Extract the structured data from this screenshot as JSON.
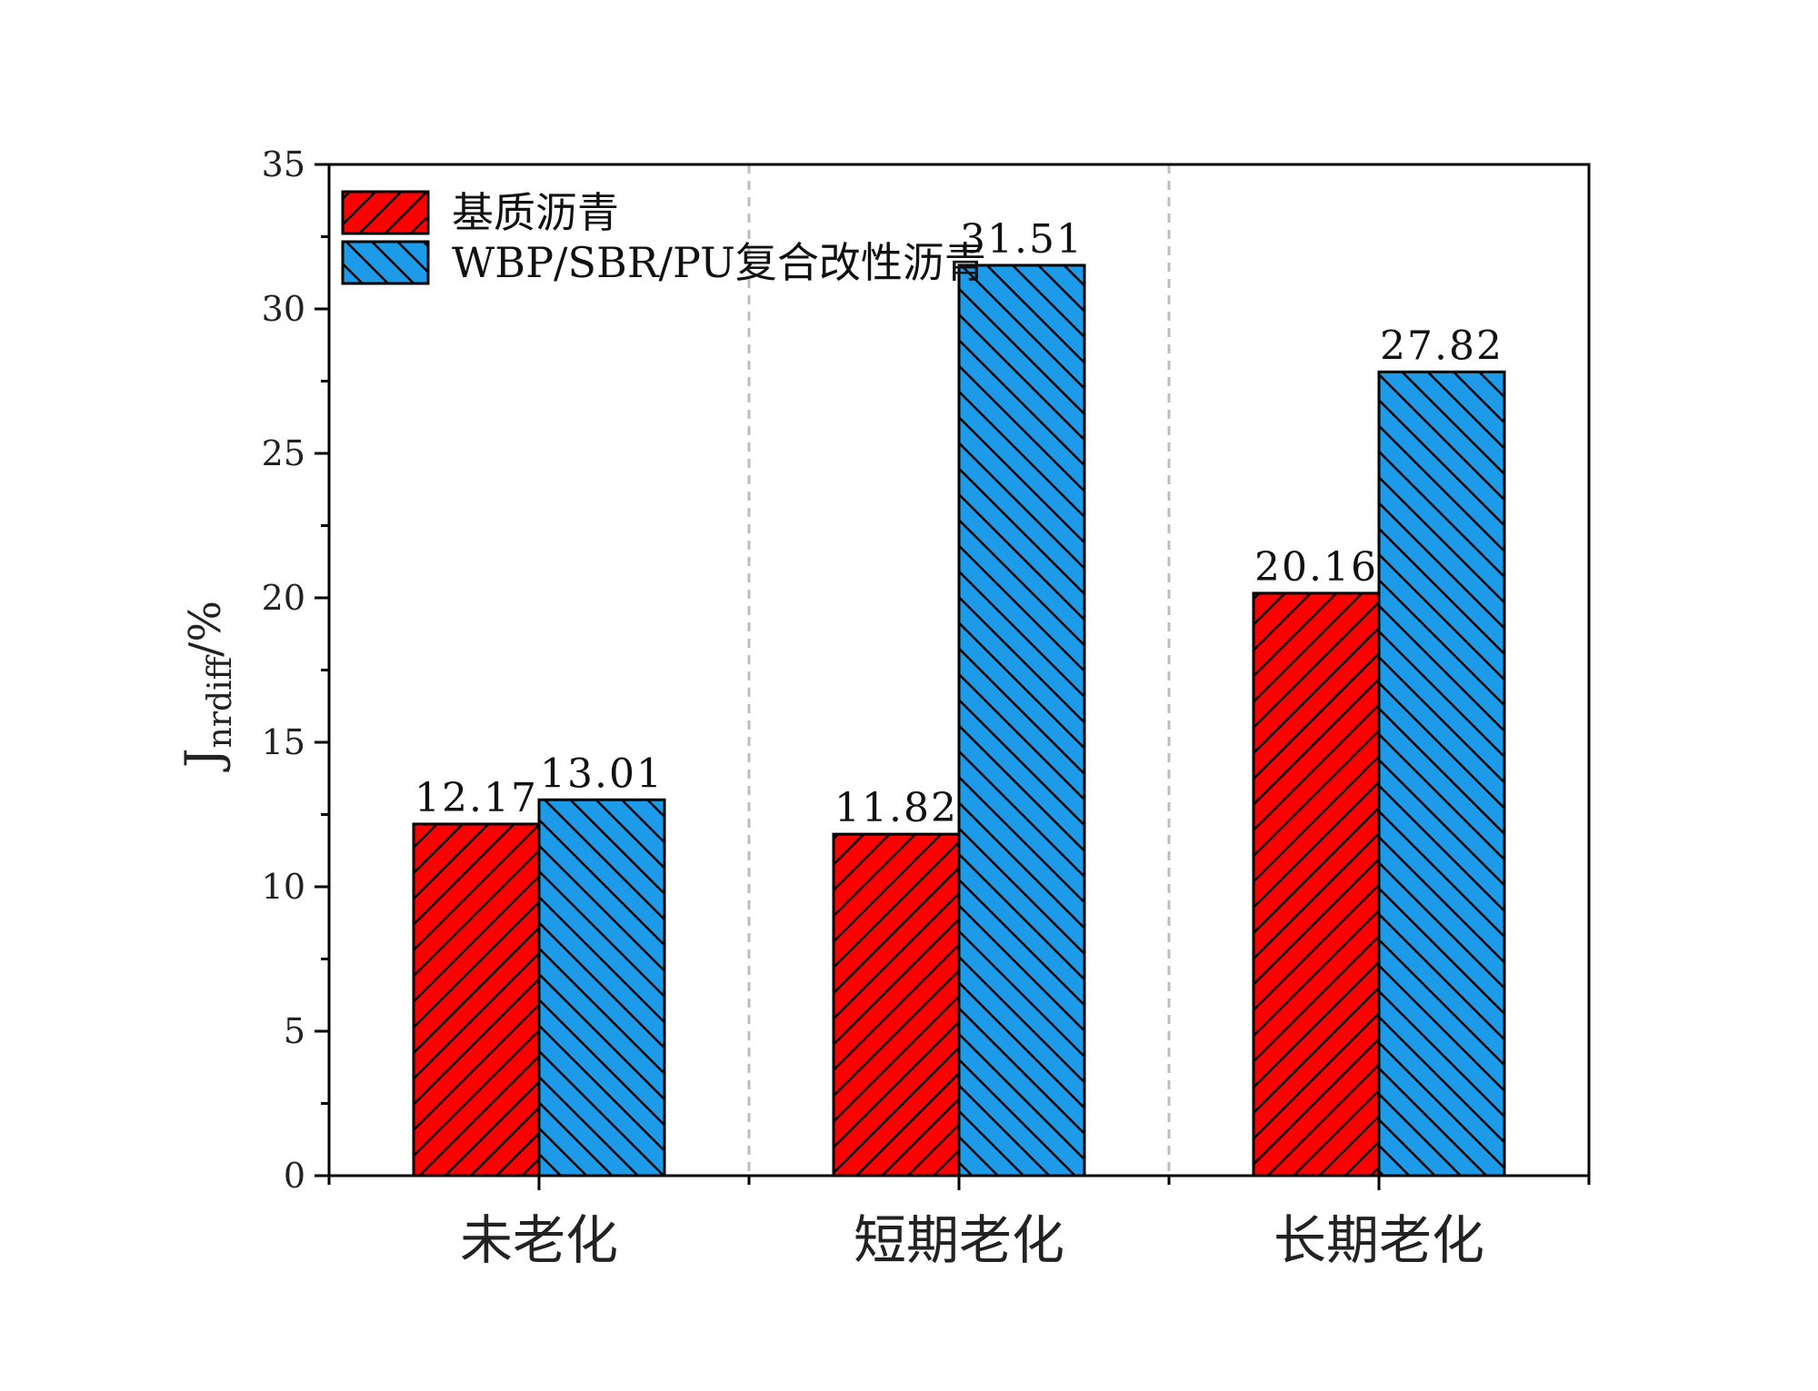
{
  "chart_data": {
    "type": "bar",
    "categories": [
      "未老化",
      "短期老化",
      "长期老化"
    ],
    "series": [
      {
        "name": "基质沥青",
        "values": [
          12.17,
          11.82,
          20.16
        ],
        "color": "#ff0000",
        "hatch": "forward"
      },
      {
        "name": "WBP/SBR/PU复合改性沥青",
        "values": [
          13.01,
          31.51,
          27.82
        ],
        "color": "#1e9be8",
        "hatch": "backward"
      }
    ],
    "data_labels": [
      [
        "12.17",
        "11.82",
        "20.16"
      ],
      [
        "13.01",
        "31.51",
        "27.82"
      ]
    ],
    "title": "",
    "xlabel": "",
    "ylabel": {
      "main": "J",
      "sub": "nrdiff",
      "suffix": "/%"
    },
    "ylim": [
      0,
      35
    ],
    "yticks": [
      "0",
      "5",
      "10",
      "15",
      "20",
      "25",
      "30",
      "35"
    ],
    "grid": "vertical dashed separators between categories",
    "legend_position": "top-left"
  }
}
